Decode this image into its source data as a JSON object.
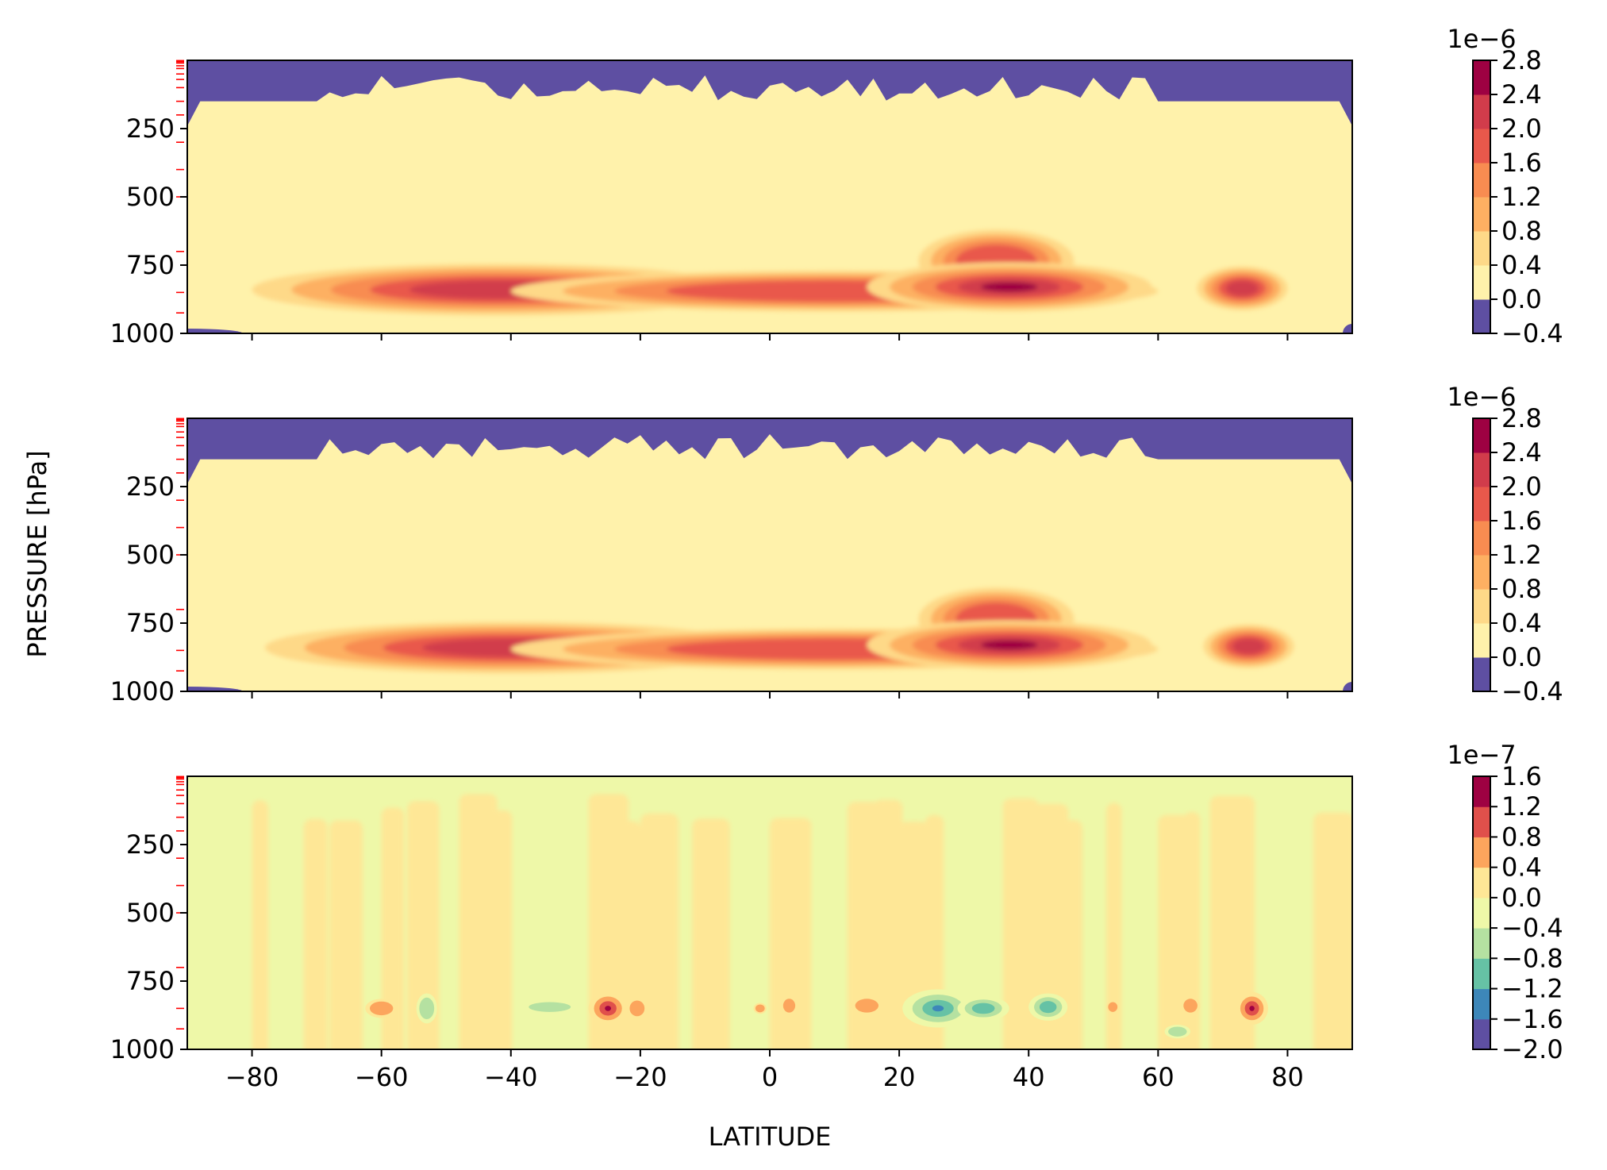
{
  "figure": {
    "ylabel": "PRESSURE [hPa]",
    "xlabel": "LATITUDE"
  },
  "chart_data": [
    {
      "type": "heatmap",
      "panel": "top",
      "xlim": [
        -90,
        90
      ],
      "ylim": [
        1000,
        0
      ],
      "yticks": [
        250,
        500,
        750,
        1000
      ],
      "xticks": [
        -80,
        -60,
        -40,
        -20,
        0,
        20,
        40,
        60,
        80
      ],
      "show_xtick_labels": false,
      "colorbar": {
        "offset_label": "1e−6",
        "levels": [
          -0.4,
          0.0,
          0.4,
          0.8,
          1.2,
          1.6,
          2.0,
          2.4,
          2.8
        ],
        "labels": [
          "−0.4",
          "0.0",
          "0.4",
          "0.8",
          "1.2",
          "1.6",
          "2.0",
          "2.4",
          "2.8"
        ],
        "colors": [
          "#5e4fa2",
          "#fff2ab",
          "#fed988",
          "#fdb062",
          "#f88c51",
          "#e9584b",
          "#d13c4b",
          "#9e0142"
        ]
      },
      "blobs": [
        {
          "lat": -42,
          "p": 840,
          "rlat": 38,
          "rp": 95,
          "level": 3
        },
        {
          "lat": 10,
          "p": 845,
          "rlat": 50,
          "rp": 75,
          "level": 2
        },
        {
          "lat": 35,
          "p": 735,
          "rlat": 12,
          "rp": 115,
          "level": 2
        },
        {
          "lat": 37,
          "p": 830,
          "rlat": 22,
          "rp": 90,
          "level": 4
        },
        {
          "lat": 73,
          "p": 835,
          "rlat": 7,
          "rp": 80,
          "level": 3
        }
      ]
    },
    {
      "type": "heatmap",
      "panel": "middle",
      "xlim": [
        -90,
        90
      ],
      "ylim": [
        1000,
        0
      ],
      "yticks": [
        250,
        500,
        750,
        1000
      ],
      "xticks": [
        -80,
        -60,
        -40,
        -20,
        0,
        20,
        40,
        60,
        80
      ],
      "show_xtick_labels": false,
      "colorbar": {
        "offset_label": "1e−6",
        "levels": [
          -0.4,
          0.0,
          0.4,
          0.8,
          1.2,
          1.6,
          2.0,
          2.4,
          2.8
        ],
        "labels": [
          "−0.4",
          "0.0",
          "0.4",
          "0.8",
          "1.2",
          "1.6",
          "2.0",
          "2.4",
          "2.8"
        ],
        "colors": [
          "#5e4fa2",
          "#fff2ab",
          "#fed988",
          "#fdb062",
          "#f88c51",
          "#e9584b",
          "#d13c4b",
          "#9e0142"
        ]
      },
      "blobs": [
        {
          "lat": -40,
          "p": 840,
          "rlat": 38,
          "rp": 95,
          "level": 3
        },
        {
          "lat": 10,
          "p": 845,
          "rlat": 50,
          "rp": 75,
          "level": 2
        },
        {
          "lat": 35,
          "p": 735,
          "rlat": 12,
          "rp": 115,
          "level": 2
        },
        {
          "lat": 37,
          "p": 830,
          "rlat": 22,
          "rp": 90,
          "level": 4
        },
        {
          "lat": 74,
          "p": 835,
          "rlat": 7,
          "rp": 80,
          "level": 3
        }
      ]
    },
    {
      "type": "heatmap",
      "panel": "bottom",
      "xlim": [
        -90,
        90
      ],
      "ylim": [
        1000,
        0
      ],
      "yticks": [
        250,
        500,
        750,
        1000
      ],
      "xticks": [
        -80,
        -60,
        -40,
        -20,
        0,
        20,
        40,
        60,
        80
      ],
      "show_xtick_labels": true,
      "colorbar": {
        "offset_label": "1e−7",
        "levels": [
          -2.0,
          -1.6,
          -1.2,
          -0.8,
          -0.4,
          0.0,
          0.4,
          0.8,
          1.2,
          1.6
        ],
        "labels": [
          "−2.0",
          "−1.6",
          "−1.2",
          "−0.8",
          "−0.4",
          "0.0",
          "0.4",
          "0.8",
          "1.2",
          "1.6"
        ],
        "colors": [
          "#5e4fa2",
          "#3d87b9",
          "#66c2a5",
          "#b5e1a1",
          "#eef8a8",
          "#fee796",
          "#fca55d",
          "#e0504b",
          "#9e0142"
        ]
      },
      "spots": [
        {
          "lat": -60,
          "p": 850,
          "rlat": 2.5,
          "rp": 35,
          "value": 0.6
        },
        {
          "lat": -53,
          "p": 850,
          "rlat": 1.6,
          "rp": 55,
          "value": -0.5
        },
        {
          "lat": -34,
          "p": 845,
          "rlat": 4.5,
          "rp": 25,
          "value": -0.5
        },
        {
          "lat": -25,
          "p": 850,
          "rlat": 3,
          "rp": 60,
          "value": 1.45
        },
        {
          "lat": -20.5,
          "p": 850,
          "rlat": 1.6,
          "rp": 40,
          "value": 0.6
        },
        {
          "lat": -1.5,
          "p": 850,
          "rlat": 1,
          "rp": 20,
          "value": 0.5
        },
        {
          "lat": 3,
          "p": 840,
          "rlat": 1.3,
          "rp": 35,
          "value": 0.5
        },
        {
          "lat": 15,
          "p": 840,
          "rlat": 2.5,
          "rp": 35,
          "value": 0.5
        },
        {
          "lat": 26,
          "p": 850,
          "rlat": 5.5,
          "rp": 70,
          "value": -1.8
        },
        {
          "lat": 33,
          "p": 850,
          "rlat": 4,
          "rp": 45,
          "value": -1.0
        },
        {
          "lat": 43,
          "p": 845,
          "rlat": 3,
          "rp": 50,
          "value": -0.9
        },
        {
          "lat": 53,
          "p": 845,
          "rlat": 1,
          "rp": 25,
          "value": 0.45
        },
        {
          "lat": 65,
          "p": 840,
          "rlat": 1.5,
          "rp": 35,
          "value": 0.5
        },
        {
          "lat": 63,
          "p": 935,
          "rlat": 2,
          "rp": 25,
          "value": -0.6
        },
        {
          "lat": 74.5,
          "p": 850,
          "rlat": 2.5,
          "rp": 60,
          "value": 1.45
        }
      ]
    }
  ]
}
